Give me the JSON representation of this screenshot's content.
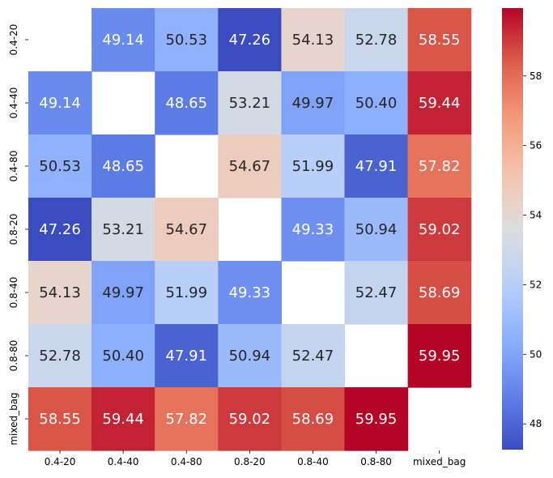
{
  "chart_data": {
    "type": "heatmap",
    "title": "",
    "xlabel": "",
    "ylabel": "",
    "x_categories": [
      "0.4-20",
      "0.4-40",
      "0.4-80",
      "0.8-20",
      "0.8-40",
      "0.8-80",
      "mixed_bag"
    ],
    "y_categories": [
      "0.4-20",
      "0.4-40",
      "0.4-80",
      "0.8-20",
      "0.8-40",
      "0.8-80",
      "mixed_bag"
    ],
    "values": [
      [
        null,
        49.14,
        50.53,
        47.26,
        54.13,
        52.78,
        58.55
      ],
      [
        49.14,
        null,
        48.65,
        53.21,
        49.97,
        50.4,
        59.44
      ],
      [
        50.53,
        48.65,
        null,
        54.67,
        51.99,
        47.91,
        57.82
      ],
      [
        47.26,
        53.21,
        54.67,
        null,
        49.33,
        50.94,
        59.02
      ],
      [
        54.13,
        49.97,
        51.99,
        49.33,
        null,
        52.47,
        58.69
      ],
      [
        52.78,
        50.4,
        47.91,
        50.94,
        52.47,
        null,
        59.95
      ],
      [
        58.55,
        59.44,
        57.82,
        59.02,
        58.69,
        59.95,
        null
      ]
    ],
    "value_format": "2 decimals",
    "colormap": "coolwarm",
    "vmin": 47.26,
    "vmax": 59.95,
    "colorbar": {
      "ticks": [
        48,
        50,
        52,
        54,
        56,
        58
      ],
      "tick_labels": [
        "48",
        "50",
        "52",
        "54",
        "56",
        "58"
      ]
    }
  }
}
